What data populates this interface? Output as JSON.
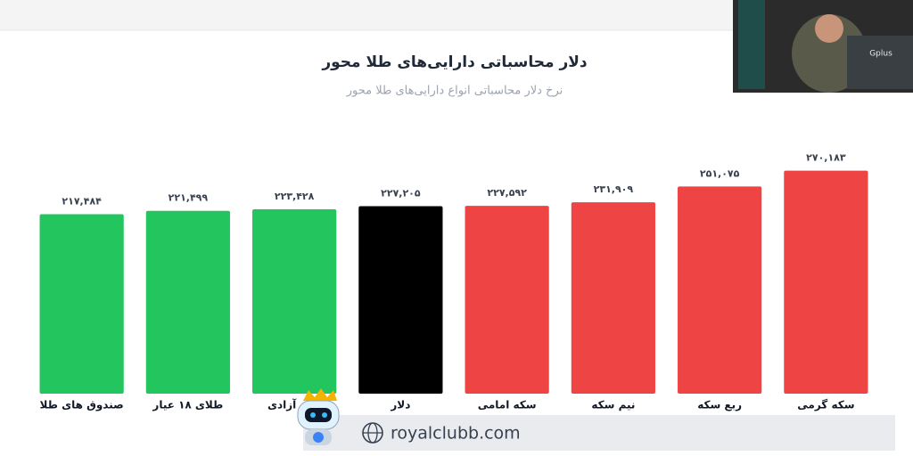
{
  "chart_data": {
    "type": "bar",
    "title": "دلار محاسباتی دارایی‌های طلا محور",
    "subtitle": "نرخ دلار محاسباتی انواع دارایی‌های طلا محور",
    "categories": [
      "صندوق های طلا",
      "طلای ۱۸ عیار",
      "بهار آزادی",
      "دلار",
      "سکه امامی",
      "نیم سکه",
      "ربع سکه",
      "سکه گرمی"
    ],
    "values": [
      217484,
      221499,
      223428,
      227205,
      227592,
      231909,
      251075,
      270183
    ],
    "value_labels": [
      "۲۱۷,۴۸۴",
      "۲۲۱,۴۹۹",
      "۲۲۳,۴۲۸",
      "۲۲۷,۲۰۵",
      "۲۲۷,۵۹۲",
      "۲۳۱,۹۰۹",
      "۲۵۱,۰۷۵",
      "۲۷۰,۱۸۳"
    ],
    "colors": [
      "#22c55e",
      "#22c55e",
      "#22c55e",
      "#000000",
      "#ef4444",
      "#ef4444",
      "#ef4444",
      "#ef4444"
    ],
    "ylim": [
      0,
      300000
    ]
  },
  "watermark": "royalclubb.com",
  "overlay_text": "Gplus"
}
